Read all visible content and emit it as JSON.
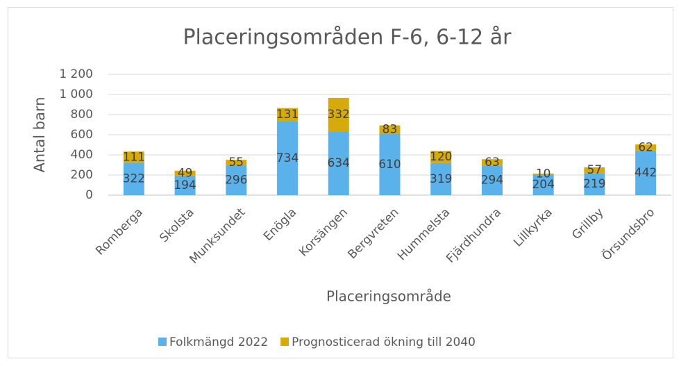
{
  "chart_data": {
    "type": "bar",
    "stacked": true,
    "title": "Placeringsområden F-6, 6-12 år",
    "x_label": "Placeringsområde",
    "y_label": "Antal barn",
    "categories": [
      "Romberga",
      "Skolsta",
      "Munksundet",
      "Enögla",
      "Korsängen",
      "Bergvreten",
      "Hummelsta",
      "Fjärdhundra",
      "Lillkyrka",
      "Grillby",
      "Örsundsbro"
    ],
    "series": [
      {
        "name": "Folkmängd 2022",
        "color": "#5bb1ea",
        "values": [
          322,
          194,
          296,
          734,
          634,
          610,
          319,
          294,
          204,
          219,
          442
        ]
      },
      {
        "name": "Prognosticerad ökning till 2040",
        "color": "#d6aa0a",
        "values": [
          111,
          49,
          55,
          131,
          332,
          83,
          120,
          63,
          10,
          57,
          62
        ]
      }
    ],
    "ylim": [
      0,
      1200
    ],
    "yticks": [
      0,
      200,
      400,
      600,
      800,
      {
        "value": 1000,
        "label": "1 000"
      },
      {
        "value": 1200,
        "label": "1 200"
      }
    ],
    "grid": true,
    "legend": "bottom"
  }
}
